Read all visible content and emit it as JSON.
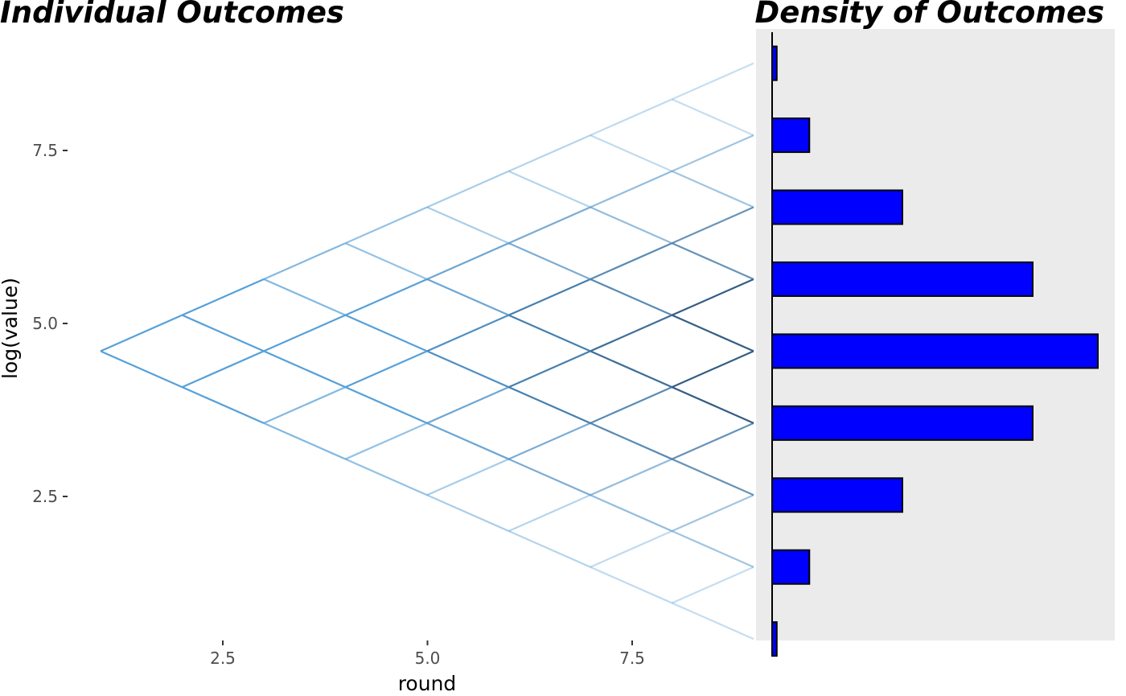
{
  "chart_data": [
    {
      "type": "line",
      "title": "Individual Outcomes",
      "xlabel": "round",
      "ylabel": "log(value)",
      "xlim": [
        0.85,
        9.0
      ],
      "ylim": [
        0.55,
        9.3
      ],
      "x_ticks": [
        2.5,
        5.0,
        7.5
      ],
      "x_tick_labels": [
        "2.5",
        "5.0",
        "7.5"
      ],
      "y_ticks": [
        2.5,
        5.0,
        7.5
      ],
      "y_tick_labels": [
        "2.5",
        "5.0",
        "7.5"
      ],
      "grid": false,
      "description_of_paths": "binomial lattice of log(value) per round; each step moves up or down by a constant increment",
      "lattice": {
        "start_round": 1,
        "end_round": 9,
        "start_value": 4.6,
        "step": 0.52
      },
      "segments_color": "#56a0d8"
    },
    {
      "type": "bar",
      "orientation": "horizontal",
      "title": "Density of Outcomes",
      "categories": [
        8.76,
        7.72,
        6.68,
        5.64,
        4.6,
        3.56,
        2.52,
        1.48,
        0.44
      ],
      "values": [
        1,
        8,
        28,
        56,
        70,
        56,
        28,
        8,
        1
      ],
      "bar_color": "#0000ff",
      "background": "#ebebeb",
      "grid": false
    }
  ]
}
